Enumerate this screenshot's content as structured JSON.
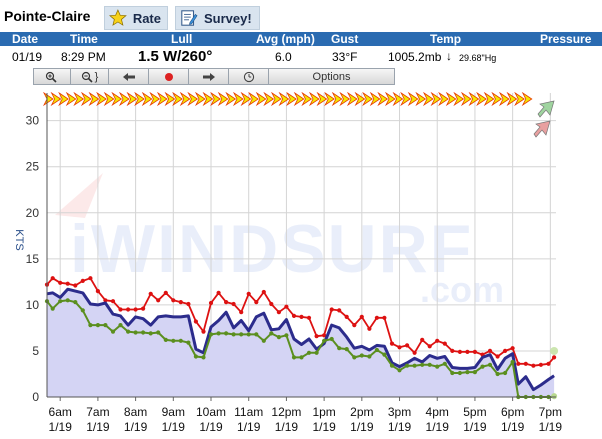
{
  "header": {
    "station_name": "Pointe-Claire",
    "rate_label": "Rate",
    "survey_label": "Survey!",
    "rate_icon": "star-icon",
    "survey_icon": "survey-icon"
  },
  "columns": {
    "date": "Date",
    "time": "Time",
    "lull": "Lull",
    "avg": "Avg (mph)",
    "gust": "Gust",
    "temp": "Temp",
    "pressure": "Pressure"
  },
  "readings": {
    "date": "01/19",
    "time": "8:29 PM",
    "wind": "1.5 W/260°",
    "avg": "6.0",
    "temp": "33°F",
    "pressure_mb": "1005.2mb",
    "pressure_trend": "↓",
    "pressure_hg": "29.68\"Hg"
  },
  "toolbar": {
    "items": [
      {
        "name": "zoom-in-icon",
        "glyph": "🔍+"
      },
      {
        "name": "zoom-out-icon",
        "glyph": "🔍−"
      },
      {
        "name": "arrow-left-icon",
        "glyph": "⬅"
      },
      {
        "name": "record-icon",
        "glyph": "●"
      },
      {
        "name": "arrow-right-icon",
        "glyph": "➡"
      },
      {
        "name": "clock-icon",
        "glyph": "◷"
      }
    ],
    "options_label": "Options"
  },
  "colors": {
    "header_bar": "#2a6bb1",
    "gust": "#dd1111",
    "avg": "#2c2c8c",
    "lull": "#5b8f1f",
    "fill": "#d4d4f4",
    "arrow_fill": "#f2e600",
    "arrow_edge": "#e83a00"
  },
  "chart_data": {
    "type": "line",
    "ylabel": "KTS",
    "ylim": [
      0,
      33
    ],
    "yticks": [
      0,
      5,
      10,
      15,
      20,
      25,
      30
    ],
    "grid": true,
    "watermark": "iWINDSURF.com",
    "x_tick_times": [
      "6am",
      "7am",
      "8am",
      "9am",
      "10am",
      "11am",
      "12pm",
      "1pm",
      "2pm",
      "3pm",
      "4pm",
      "5pm",
      "6pm",
      "7pm"
    ],
    "x_tick_dates": [
      "1/19",
      "1/19",
      "1/19",
      "1/19",
      "1/19",
      "1/19",
      "1/19",
      "1/19",
      "1/19",
      "1/19",
      "1/19",
      "1/19",
      "1/19",
      "1/19"
    ],
    "x_hours": [
      5.65,
      5.8,
      6.0,
      6.2,
      6.4,
      6.6,
      6.8,
      7.0,
      7.2,
      7.4,
      7.6,
      7.8,
      8.0,
      8.2,
      8.4,
      8.6,
      8.8,
      9.0,
      9.2,
      9.4,
      9.6,
      9.8,
      10.0,
      10.2,
      10.4,
      10.6,
      10.8,
      11.0,
      11.2,
      11.4,
      11.6,
      11.8,
      12.0,
      12.2,
      12.4,
      12.6,
      12.8,
      13.0,
      13.2,
      13.4,
      13.6,
      13.8,
      14.0,
      14.2,
      14.4,
      14.6,
      14.8,
      15.0,
      15.2,
      15.4,
      15.6,
      15.8,
      16.0,
      16.2,
      16.4,
      16.6,
      16.8,
      17.0,
      17.2,
      17.4,
      17.6,
      17.8,
      18.0,
      18.15,
      18.35,
      18.55,
      18.75,
      18.95,
      19.1
    ],
    "series": [
      {
        "name": "Gust",
        "values": [
          12.2,
          12.9,
          12.4,
          12.3,
          12.1,
          12.6,
          12.9,
          11.5,
          10.5,
          10.4,
          9.5,
          9.5,
          9.5,
          9.6,
          11.2,
          10.5,
          11.3,
          10.5,
          10.3,
          10.1,
          8.2,
          7.1,
          10.2,
          11.3,
          10.3,
          10.1,
          9.2,
          11.2,
          10.3,
          11.4,
          10.1,
          9.2,
          9.8,
          8.8,
          8.7,
          8.6,
          6.6,
          6.7,
          9.5,
          9.4,
          8.7,
          7.8,
          8.7,
          7.4,
          8.6,
          8.6,
          5.8,
          5.4,
          5.6,
          4.8,
          6.2,
          5.5,
          6.1,
          5.8,
          5.0,
          4.9,
          4.9,
          4.9,
          4.6,
          5.0,
          4.4,
          5.0,
          5.3,
          3.6,
          3.6,
          3.4,
          3.5,
          3.6,
          4.3
        ]
      },
      {
        "name": "Avg",
        "values": [
          11.2,
          11.3,
          10.8,
          11.7,
          11.5,
          11.3,
          10.1,
          10.0,
          10.2,
          9.0,
          8.8,
          7.8,
          8.7,
          8.5,
          7.8,
          8.7,
          8.8,
          8.7,
          8.7,
          8.8,
          5.2,
          4.8,
          7.6,
          8.3,
          9.2,
          7.5,
          8.3,
          7.2,
          8.7,
          9.1,
          7.3,
          7.4,
          8.4,
          6.3,
          5.7,
          6.3,
          5.2,
          5.8,
          7.8,
          7.5,
          6.5,
          5.3,
          5.5,
          5.1,
          5.6,
          5.5,
          3.7,
          3.3,
          3.7,
          4.2,
          3.8,
          4.5,
          4.2,
          4.4,
          3.2,
          3.1,
          3.1,
          3.2,
          4.3,
          4.6,
          3.0,
          4.2,
          4.7,
          1.4,
          2.2,
          0.8,
          1.3,
          1.9,
          2.3
        ]
      },
      {
        "name": "Lull",
        "values": [
          10.4,
          9.6,
          10.4,
          10.5,
          10.3,
          9.4,
          7.8,
          7.8,
          7.8,
          7.1,
          7.8,
          7.1,
          7.0,
          7.0,
          6.9,
          7.0,
          6.2,
          6.1,
          6.1,
          5.9,
          4.4,
          4.3,
          6.8,
          6.9,
          6.9,
          6.8,
          6.8,
          6.8,
          6.8,
          6.1,
          6.9,
          6.5,
          6.7,
          4.3,
          4.3,
          4.8,
          4.8,
          6.1,
          6.3,
          5.3,
          5.2,
          4.3,
          4.5,
          4.4,
          5.1,
          4.6,
          3.4,
          2.9,
          3.4,
          3.4,
          3.5,
          3.5,
          3.3,
          3.6,
          2.6,
          2.6,
          2.7,
          2.7,
          3.3,
          3.5,
          2.5,
          2.6,
          3.8,
          0.0,
          0.0,
          0.0,
          0.0,
          0.0,
          0.0
        ]
      }
    ]
  }
}
